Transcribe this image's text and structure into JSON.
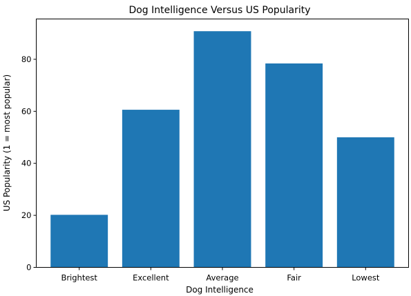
{
  "chart_data": {
    "type": "bar",
    "title": "Dog Intelligence Versus US Popularity",
    "xlabel": "Dog Intelligence",
    "ylabel": "US Popularity (1 = most popular)",
    "categories": [
      "Brightest",
      "Excellent",
      "Average",
      "Fair",
      "Lowest"
    ],
    "values": [
      20.2,
      60.6,
      90.8,
      78.4,
      50.0
    ],
    "ylim": [
      0,
      95.5
    ],
    "yticks": [
      "0",
      "20",
      "40",
      "60",
      "80"
    ],
    "bar_color": "#1f77b4",
    "grid": false,
    "legend": "none"
  }
}
